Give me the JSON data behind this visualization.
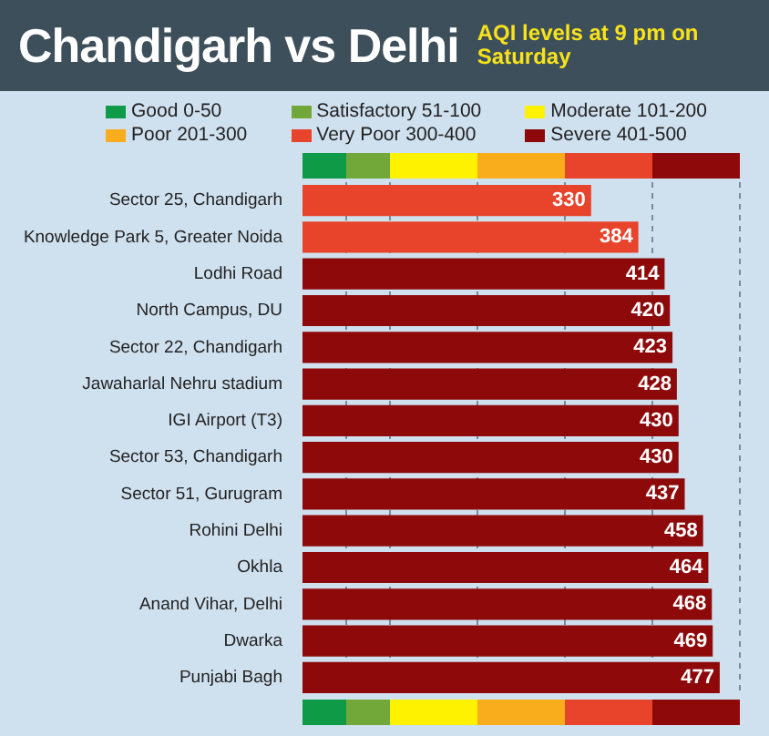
{
  "chart_data": {
    "type": "bar",
    "orientation": "horizontal",
    "stacked": true,
    "title": "Chandigarh vs Delhi",
    "subtitle": "AQI levels at 9 pm on Saturday",
    "categories": [
      "Sector 25, Chandigarh",
      "Knowledge Park 5, Greater Noida",
      "Lodhi Road",
      "North Campus, DU",
      "Sector 22, Chandigarh",
      "Jawaharlal Nehru stadium",
      "IGI Airport (T3)",
      "Sector 53, Chandigarh",
      "Sector 51, Gurugram",
      "Rohini Delhi",
      "Okhla",
      "Anand Vihar, Delhi",
      "Dwarka",
      "Punjabi Bagh"
    ],
    "series": [
      {
        "name": "Good 0-50",
        "color": "#0f9a48",
        "values": [
          null,
          null,
          null,
          null,
          null,
          null,
          null,
          null,
          null,
          null,
          null,
          null,
          null,
          null
        ]
      },
      {
        "name": "Satisfactory 51-100",
        "color": "#72a83a",
        "values": [
          null,
          null,
          null,
          null,
          null,
          null,
          null,
          null,
          null,
          null,
          null,
          null,
          null,
          null
        ]
      },
      {
        "name": "Moderate 101-200",
        "color": "#fff200",
        "values": [
          null,
          null,
          null,
          null,
          null,
          null,
          null,
          null,
          null,
          null,
          null,
          null,
          null,
          null
        ]
      },
      {
        "name": "Poor 201-300",
        "color": "#f9ad1c",
        "values": [
          null,
          null,
          null,
          null,
          null,
          null,
          null,
          null,
          null,
          null,
          null,
          null,
          null,
          null
        ]
      },
      {
        "name": "Very Poor 300-400",
        "color": "#e8442c",
        "values": [
          330,
          384,
          null,
          null,
          null,
          null,
          null,
          null,
          null,
          null,
          null,
          null,
          null,
          null
        ]
      },
      {
        "name": "Severe 401-500",
        "color": "#8e0a0a",
        "values": [
          null,
          null,
          414,
          420,
          423,
          428,
          430,
          430,
          437,
          458,
          464,
          468,
          469,
          477
        ]
      }
    ],
    "data_labels": true,
    "xlim": [
      0,
      500
    ],
    "xticks": [
      {
        "value": 50,
        "label": null
      },
      {
        "value": 100,
        "label": null
      },
      {
        "value": 200,
        "label": null
      },
      {
        "value": 300,
        "label": null
      },
      {
        "value": 400,
        "label": null
      },
      {
        "value": 500,
        "label": null
      }
    ],
    "tick_labels": "y",
    "grid": "x",
    "legend": "top"
  }
}
